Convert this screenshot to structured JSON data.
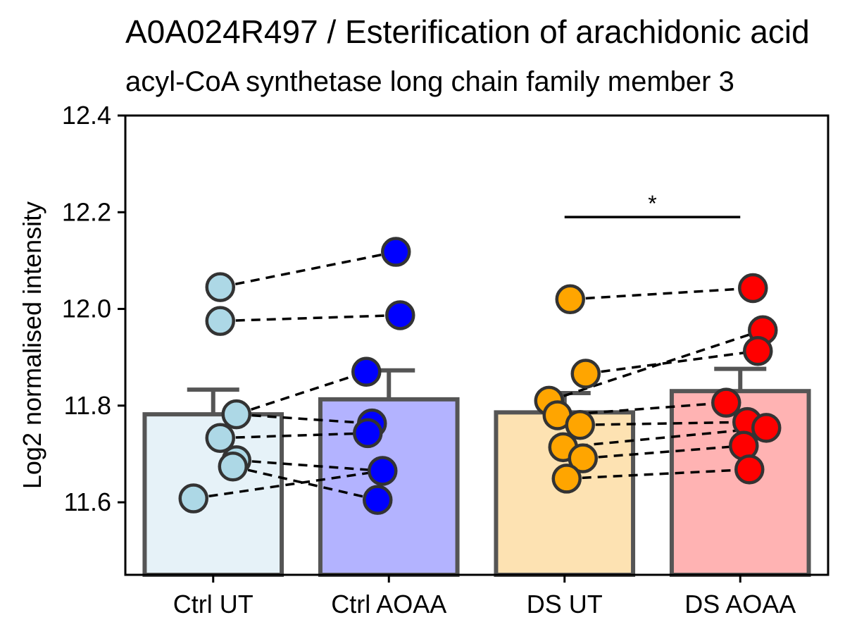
{
  "chart_data": {
    "type": "bar",
    "title": "A0A024R497 / Esterification of arachidonic acid",
    "subtitle": "acyl-CoA synthetase long chain family member 3",
    "ylabel": "Log2 normalised intensity",
    "xlabel": "",
    "ylim": [
      11.45,
      12.4
    ],
    "yticks": [
      11.6,
      11.8,
      12.0,
      12.2,
      12.4
    ],
    "ytick_labels": [
      "11.6",
      "11.8",
      "12.0",
      "12.2",
      "12.4"
    ],
    "categories": [
      "Ctrl UT",
      "Ctrl AOAA",
      "DS UT",
      "DS AOAA"
    ],
    "colors": [
      "#ADD8E6",
      "#0000FF",
      "#FFA500",
      "#FF0000"
    ],
    "bar_colors": [
      "#E6F2F8",
      "#B3B3FF",
      "#FDE2B2",
      "#FFB3B3"
    ],
    "bar_edge_color": "#555555",
    "bars": [
      {
        "mean": 11.782,
        "error": 11.833
      },
      {
        "mean": 11.813,
        "error": 11.873
      },
      {
        "mean": 11.786,
        "error": 11.826
      },
      {
        "mean": 11.83,
        "error": 11.876
      }
    ],
    "points": [
      [
        12.045,
        11.975,
        11.782,
        11.733,
        11.687,
        11.674,
        11.608
      ],
      [
        12.118,
        11.987,
        11.87,
        11.763,
        11.743,
        11.665,
        11.605
      ],
      [
        12.02,
        11.866,
        11.81,
        11.78,
        11.76,
        11.714,
        11.691,
        11.649
      ],
      [
        12.043,
        11.956,
        11.913,
        11.806,
        11.766,
        11.754,
        11.717,
        11.668
      ]
    ],
    "pairs": [
      {
        "groups": [
          0,
          1
        ],
        "y": [
          [
            12.045,
            12.118
          ],
          [
            11.975,
            11.987
          ],
          [
            11.782,
            11.87
          ],
          [
            11.782,
            11.763
          ],
          [
            11.733,
            11.743
          ],
          [
            11.687,
            11.665
          ],
          [
            11.674,
            11.605
          ],
          [
            11.608,
            11.665
          ]
        ]
      },
      {
        "groups": [
          2,
          3
        ],
        "y": [
          [
            12.02,
            12.043
          ],
          [
            11.866,
            11.913
          ],
          [
            11.81,
            11.956
          ],
          [
            11.78,
            11.806
          ],
          [
            11.76,
            11.766
          ],
          [
            11.714,
            11.754
          ],
          [
            11.691,
            11.717
          ],
          [
            11.649,
            11.668
          ]
        ]
      }
    ],
    "significance": {
      "from": 2,
      "to": 3,
      "y": 12.19,
      "label": "*"
    }
  }
}
